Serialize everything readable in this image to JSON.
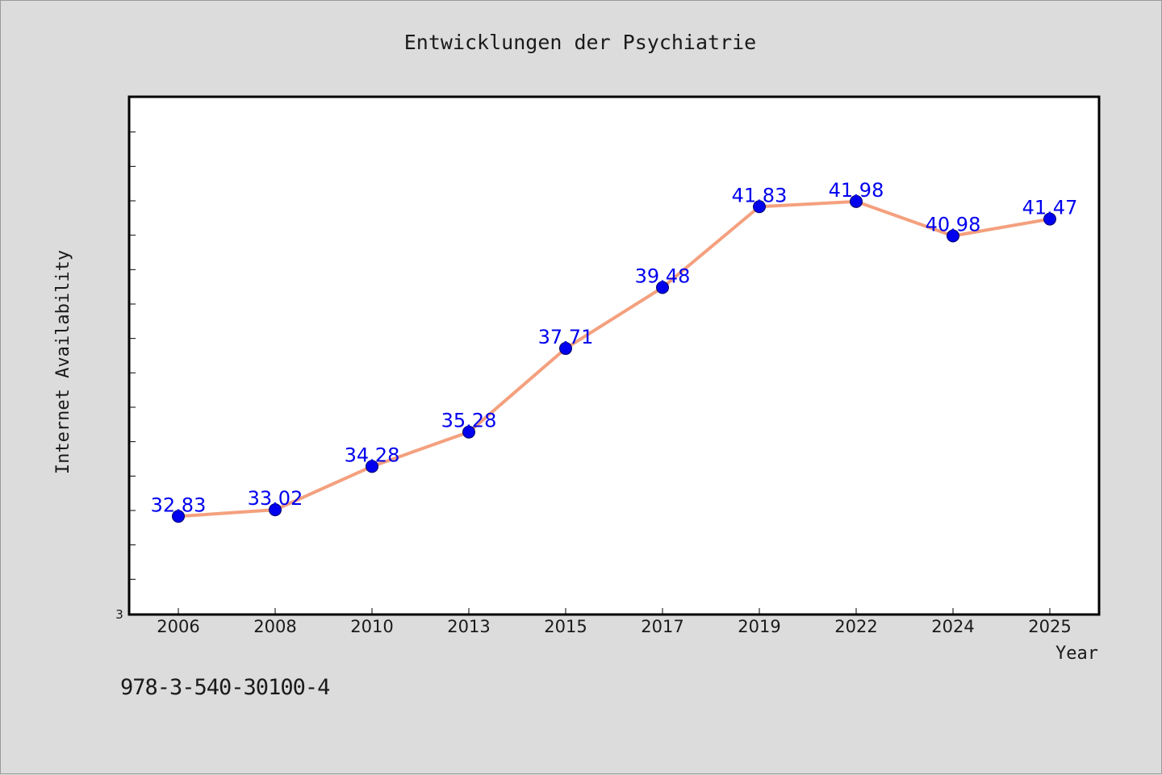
{
  "chart_data": {
    "type": "line",
    "title": "Entwicklungen der Psychiatrie",
    "xlabel": "Year",
    "ylabel": "Internet Availability",
    "y_tick_label": "3",
    "categories": [
      "2006",
      "2008",
      "2010",
      "2013",
      "2015",
      "2017",
      "2019",
      "2022",
      "2024",
      "2025"
    ],
    "series": [
      {
        "values": [
          32.83,
          33.02,
          34.28,
          35.28,
          37.71,
          39.48,
          41.83,
          41.98,
          40.98,
          41.47
        ],
        "labels": [
          "32.83",
          "33.02",
          "34.28",
          "35.28",
          "37.71",
          "39.48",
          "41.83",
          "41.98",
          "40.98",
          "41.47"
        ]
      }
    ],
    "ylim": [
      30,
      45
    ],
    "grid": false,
    "legend": "none",
    "colors": {
      "line": "#f4a07e",
      "marker": "#0000ee",
      "data_label": "#0000ee",
      "plot_bg": "#ffffff",
      "page_bg": "#dcdcdc"
    }
  },
  "footnote": "978-3-540-30100-4"
}
